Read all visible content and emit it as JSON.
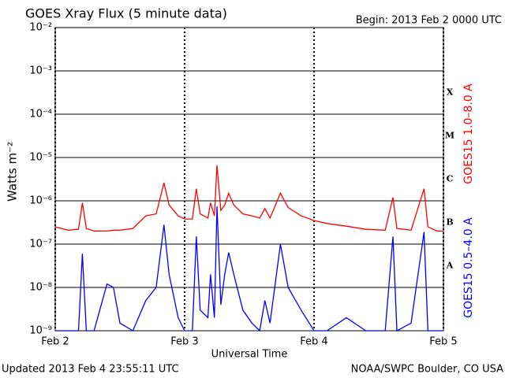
{
  "chart_data": {
    "type": "line",
    "title": "GOES Xray Flux (5 minute data)",
    "subtitle": "Begin:  2013 Feb 2 0000 UTC",
    "y_label": "Watts m⁻²",
    "x_label": "Universal Time",
    "footer_left": "Updated 2013 Feb  4 23:55:11 UTC",
    "footer_right": "NOAA/SWPC Boulder, CO USA",
    "log_y": true,
    "grid": true,
    "xlim": [
      0,
      3
    ],
    "xticks": [
      {
        "value": 0,
        "label": "Feb 2"
      },
      {
        "value": 1,
        "label": "Feb 3"
      },
      {
        "value": 2,
        "label": "Feb 4"
      },
      {
        "value": 3,
        "label": "Feb 5"
      }
    ],
    "ylim": [
      1e-09,
      0.01
    ],
    "yticks": [
      {
        "value": 1e-09,
        "label": "10⁻⁹"
      },
      {
        "value": 1e-08,
        "label": "10⁻⁸"
      },
      {
        "value": 1e-07,
        "label": "10⁻⁷"
      },
      {
        "value": 1e-06,
        "label": "10⁻⁶"
      },
      {
        "value": 1e-05,
        "label": "10⁻⁵"
      },
      {
        "value": 0.0001,
        "label": "10⁻⁴"
      },
      {
        "value": 0.001,
        "label": "10⁻³"
      },
      {
        "value": 0.01,
        "label": "10⁻²"
      }
    ],
    "flare_classes": [
      {
        "label": "A",
        "value": 1e-08
      },
      {
        "label": "B",
        "value": 1e-07
      },
      {
        "label": "C",
        "value": 1e-06
      },
      {
        "label": "M",
        "value": 1e-05
      },
      {
        "label": "X",
        "value": 0.0001
      }
    ],
    "x": [
      0,
      0.1,
      0.18,
      0.21,
      0.24,
      0.3,
      0.4,
      0.45,
      0.5,
      0.6,
      0.7,
      0.78,
      0.84,
      0.88,
      0.95,
      1.0,
      1.06,
      1.09,
      1.12,
      1.18,
      1.2,
      1.23,
      1.25,
      1.28,
      1.31,
      1.34,
      1.38,
      1.45,
      1.52,
      1.58,
      1.62,
      1.66,
      1.74,
      1.8,
      1.9,
      2.0,
      2.1,
      2.25,
      2.4,
      2.55,
      2.61,
      2.64,
      2.75,
      2.85,
      2.88,
      2.95,
      3.0
    ],
    "series": [
      {
        "name": "GOES15 1.0–8.0 A",
        "color": "#ff0000",
        "values": [
          2.5e-07,
          2.1e-07,
          2.2e-07,
          9e-07,
          2.3e-07,
          2e-07,
          2e-07,
          2.1e-07,
          2.1e-07,
          2.3e-07,
          4.5e-07,
          5e-07,
          2.6e-06,
          8e-07,
          4.5e-07,
          3.8e-07,
          3.8e-07,
          1.9e-06,
          5e-07,
          4e-07,
          9e-07,
          4.5e-07,
          6.6e-06,
          6e-07,
          8e-07,
          1.5e-06,
          8e-07,
          5e-07,
          4.5e-07,
          4e-07,
          6.6e-07,
          4e-07,
          1.5e-06,
          7e-07,
          4.5e-07,
          3.5e-07,
          3e-07,
          2.6e-07,
          2.2e-07,
          2.1e-07,
          1.2e-06,
          2.3e-07,
          2.1e-07,
          1.9e-06,
          2.5e-07,
          2e-07,
          2e-07
        ]
      },
      {
        "name": "GOES15 0.5–4.0 A",
        "color": "#0000ff",
        "values": [
          1e-09,
          1e-09,
          1e-09,
          6e-08,
          1e-09,
          1e-09,
          1.2e-08,
          1e-08,
          1.5e-09,
          1e-09,
          5e-09,
          1e-08,
          2.8e-07,
          2e-08,
          2e-09,
          1e-09,
          1e-09,
          1.5e-07,
          3e-09,
          2e-09,
          2e-08,
          2e-09,
          7.4e-07,
          4e-09,
          2e-08,
          6.4e-08,
          2e-08,
          3e-09,
          1.5e-09,
          1e-09,
          5e-09,
          1.5e-09,
          1e-07,
          1e-08,
          3e-09,
          1e-09,
          1e-09,
          2e-09,
          1e-09,
          1e-09,
          1.5e-07,
          1e-09,
          1.5e-09,
          1.9e-07,
          1e-09,
          1e-09,
          1e-09
        ]
      }
    ]
  }
}
